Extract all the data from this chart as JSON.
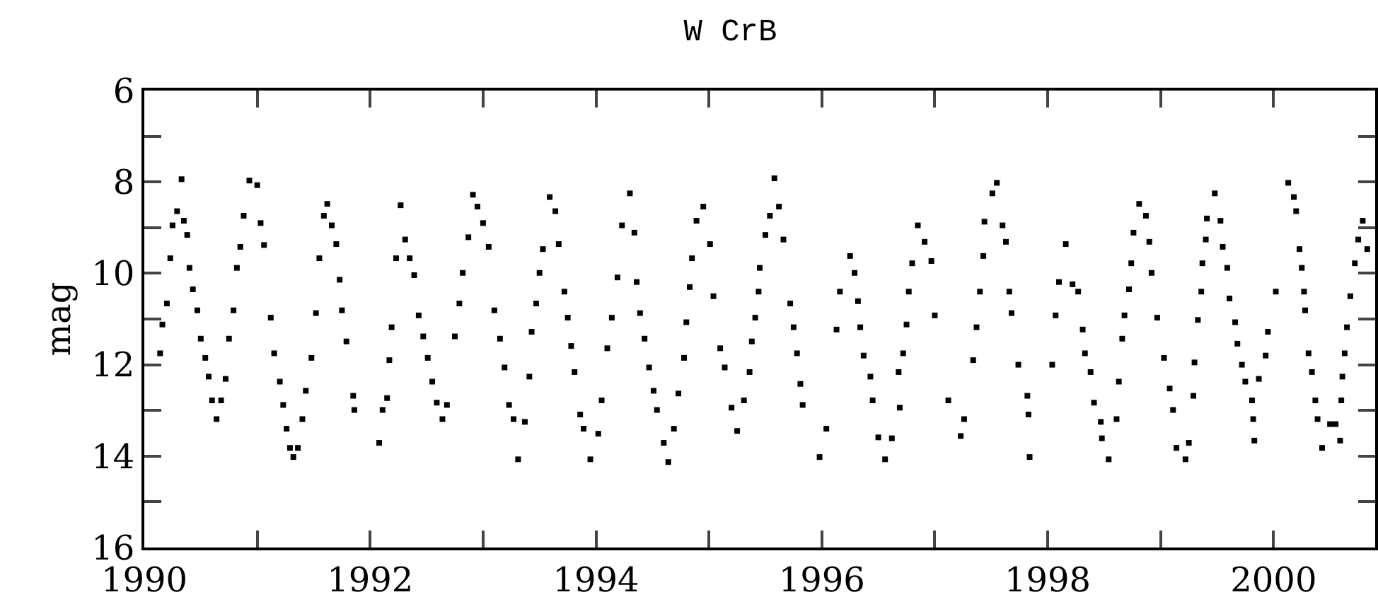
{
  "chart_data": {
    "type": "scatter",
    "title": "W CrB",
    "ylabel": "mag",
    "x": [
      1990.14,
      1990.16,
      1990.2,
      1990.23,
      1990.25,
      1990.29,
      1990.33,
      1990.35,
      1990.38,
      1990.4,
      1990.43,
      1990.47,
      1990.5,
      1990.54,
      1990.57,
      1990.6,
      1990.64,
      1990.68,
      1990.72,
      1990.75,
      1990.79,
      1990.82,
      1990.85,
      1990.88,
      1990.93,
      1991.0,
      1991.03,
      1991.06,
      1991.12,
      1991.15,
      1991.2,
      1991.23,
      1991.26,
      1991.29,
      1991.32,
      1991.36,
      1991.4,
      1991.43,
      1991.48,
      1991.52,
      1991.55,
      1991.59,
      1991.62,
      1991.66,
      1991.7,
      1991.73,
      1991.75,
      1991.79,
      1991.85,
      1991.86,
      1992.08,
      1992.11,
      1992.15,
      1992.17,
      1992.19,
      1992.23,
      1992.27,
      1992.31,
      1992.35,
      1992.39,
      1992.43,
      1992.47,
      1992.51,
      1992.55,
      1992.59,
      1992.64,
      1992.68,
      1992.75,
      1992.79,
      1992.82,
      1992.87,
      1992.91,
      1992.95,
      1993.0,
      1993.05,
      1993.1,
      1993.15,
      1993.19,
      1993.23,
      1993.27,
      1993.31,
      1993.37,
      1993.41,
      1993.43,
      1993.47,
      1993.5,
      1993.53,
      1993.59,
      1993.64,
      1993.67,
      1993.72,
      1993.75,
      1993.78,
      1993.81,
      1993.86,
      1993.89,
      1993.95,
      1994.02,
      1994.05,
      1994.1,
      1994.14,
      1994.19,
      1994.23,
      1994.3,
      1994.34,
      1994.36,
      1994.39,
      1994.43,
      1994.47,
      1994.51,
      1994.54,
      1994.6,
      1994.64,
      1994.69,
      1994.73,
      1994.78,
      1994.8,
      1994.83,
      1994.85,
      1994.89,
      1994.95,
      1995.01,
      1995.04,
      1995.1,
      1995.14,
      1995.2,
      1995.25,
      1995.31,
      1995.36,
      1995.38,
      1995.41,
      1995.44,
      1995.45,
      1995.5,
      1995.54,
      1995.58,
      1995.62,
      1995.66,
      1995.72,
      1995.75,
      1995.78,
      1995.81,
      1995.83,
      1995.98,
      1996.04,
      1996.13,
      1996.16,
      1996.25,
      1996.29,
      1996.32,
      1996.34,
      1996.37,
      1996.43,
      1996.45,
      1996.5,
      1996.56,
      1996.62,
      1996.68,
      1996.69,
      1996.72,
      1996.75,
      1996.77,
      1996.8,
      1996.85,
      1996.91,
      1996.97,
      1997.0,
      1997.12,
      1997.23,
      1997.26,
      1997.34,
      1997.37,
      1997.4,
      1997.43,
      1997.44,
      1997.51,
      1997.55,
      1997.6,
      1997.63,
      1997.66,
      1997.68,
      1997.74,
      1997.82,
      1997.83,
      1997.84,
      1998.04,
      1998.07,
      1998.1,
      1998.16,
      1998.22,
      1998.27,
      1998.31,
      1998.33,
      1998.38,
      1998.41,
      1998.47,
      1998.48,
      1998.54,
      1998.61,
      1998.63,
      1998.66,
      1998.68,
      1998.72,
      1998.74,
      1998.76,
      1998.81,
      1998.87,
      1998.9,
      1998.92,
      1998.97,
      1999.03,
      1999.08,
      1999.11,
      1999.14,
      1999.22,
      1999.25,
      1999.29,
      1999.3,
      1999.33,
      1999.36,
      1999.37,
      1999.4,
      1999.41,
      1999.48,
      1999.53,
      1999.55,
      1999.59,
      1999.61,
      1999.66,
      1999.68,
      1999.72,
      1999.75,
      1999.81,
      1999.82,
      1999.83,
      1999.87,
      1999.93,
      1999.95,
      2000.02,
      2000.13,
      2000.18,
      2000.2,
      2000.23,
      2000.25,
      2000.27,
      2000.28,
      2000.31,
      2000.34,
      2000.37,
      2000.39,
      2000.43,
      2000.5,
      2000.55,
      2000.59,
      2000.6,
      2000.61,
      2000.63,
      2000.65,
      2000.68,
      2000.72,
      2000.75,
      2000.79,
      2000.83
    ],
    "values": [
      11.75,
      11.12,
      10.66,
      9.67,
      8.95,
      8.64,
      7.94,
      8.85,
      9.16,
      9.88,
      10.35,
      10.81,
      11.43,
      11.85,
      12.26,
      12.78,
      13.19,
      12.78,
      12.31,
      11.43,
      10.81,
      9.88,
      9.42,
      8.74,
      7.97,
      8.07,
      8.9,
      9.38,
      10.97,
      11.75,
      12.37,
      12.88,
      13.4,
      13.82,
      14.02,
      13.82,
      13.19,
      12.57,
      11.85,
      10.87,
      9.67,
      8.74,
      8.48,
      8.95,
      9.36,
      10.14,
      10.81,
      11.49,
      12.68,
      12.99,
      13.71,
      12.99,
      12.73,
      11.9,
      11.18,
      9.67,
      8.51,
      9.26,
      9.67,
      10.04,
      10.92,
      11.38,
      11.85,
      12.37,
      12.83,
      13.19,
      12.88,
      11.38,
      10.66,
      9.99,
      9.21,
      8.28,
      8.54,
      8.9,
      9.42,
      10.81,
      11.43,
      12.06,
      12.88,
      13.19,
      14.07,
      13.25,
      12.26,
      11.28,
      10.66,
      9.99,
      9.47,
      8.33,
      8.64,
      9.36,
      10.4,
      10.97,
      11.59,
      12.16,
      13.09,
      13.4,
      14.07,
      13.51,
      12.78,
      11.64,
      10.97,
      10.09,
      8.95,
      8.25,
      9.11,
      10.19,
      10.87,
      11.43,
      12.06,
      12.57,
      12.99,
      13.71,
      14.13,
      13.4,
      12.63,
      11.85,
      11.07,
      10.3,
      9.67,
      8.85,
      8.54,
      9.36,
      10.5,
      11.64,
      12.06,
      12.94,
      13.45,
      12.78,
      12.16,
      11.49,
      10.97,
      10.4,
      9.88,
      9.16,
      8.74,
      7.92,
      8.54,
      9.26,
      10.66,
      11.18,
      11.75,
      12.42,
      12.88,
      14.02,
      13.4,
      11.23,
      10.4,
      9.62,
      9.99,
      10.61,
      11.18,
      11.8,
      12.26,
      12.78,
      13.59,
      14.07,
      13.61,
      12.16,
      12.94,
      11.75,
      11.12,
      10.4,
      9.78,
      8.95,
      9.31,
      9.73,
      10.92,
      12.78,
      13.56,
      13.19,
      11.9,
      11.18,
      10.4,
      9.62,
      8.87,
      8.25,
      8.02,
      8.95,
      9.31,
      10.4,
      10.87,
      12.0,
      12.68,
      13.09,
      14.02,
      12.0,
      10.92,
      10.19,
      9.36,
      10.24,
      10.4,
      11.23,
      11.75,
      12.16,
      12.83,
      13.25,
      13.61,
      14.07,
      13.19,
      12.37,
      11.43,
      10.92,
      10.35,
      9.78,
      9.11,
      8.48,
      8.74,
      9.31,
      9.99,
      10.97,
      11.85,
      12.52,
      12.99,
      13.82,
      14.07,
      13.71,
      12.68,
      11.95,
      11.02,
      10.4,
      9.78,
      9.26,
      8.8,
      8.25,
      8.85,
      9.42,
      9.88,
      10.55,
      11.07,
      11.54,
      12.0,
      12.37,
      12.78,
      13.19,
      13.66,
      12.31,
      11.8,
      11.28,
      10.4,
      8.02,
      8.33,
      8.64,
      9.47,
      9.88,
      10.4,
      10.81,
      11.75,
      12.16,
      12.78,
      13.19,
      13.82,
      13.3,
      13.3,
      13.66,
      12.78,
      12.26,
      11.75,
      11.18,
      10.5,
      9.78,
      9.26,
      8.85,
      9.47
    ],
    "color": "#000000",
    "marker": "square",
    "xlim": [
      1990,
      2000.9
    ],
    "xticks": [
      1990,
      {
        "value": 1991,
        "label": null
      },
      1992,
      {
        "value": 1993,
        "label": null
      },
      1994,
      {
        "value": 1995,
        "label": null
      },
      1996,
      {
        "value": 1997,
        "label": null
      },
      1998,
      {
        "value": 1999,
        "label": null
      },
      2000
    ],
    "ylim": [
      16,
      6
    ],
    "yticks": [
      6,
      {
        "value": 7,
        "label": null
      },
      8,
      {
        "value": 9,
        "label": null
      },
      10,
      {
        "value": 11,
        "label": null
      },
      12,
      {
        "value": 13,
        "label": null
      },
      14,
      {
        "value": 15,
        "label": null
      },
      16
    ],
    "grid": false
  }
}
